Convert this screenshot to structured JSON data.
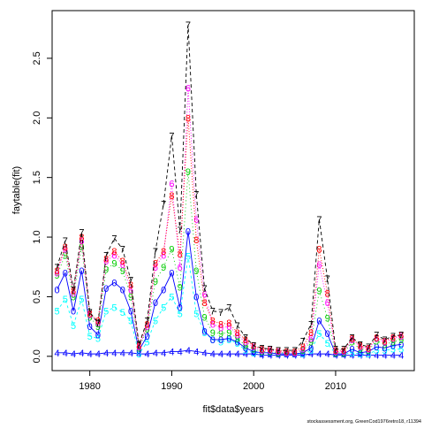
{
  "chart_data": {
    "type": "line",
    "title": "",
    "xlabel": "fit$data$years",
    "ylabel": "faytable(fit)",
    "footnote": "stockassessment.org, GreenCod1976retro18, r11394",
    "xlim": [
      1975.4,
      2019.6
    ],
    "ylim": [
      -0.12,
      2.9
    ],
    "xticks": [
      1980,
      1990,
      2000,
      2010
    ],
    "yticks": [
      0.0,
      0.5,
      1.0,
      1.5,
      2.0,
      2.5
    ],
    "x": [
      1976,
      1977,
      1978,
      1979,
      1980,
      1981,
      1982,
      1983,
      1984,
      1985,
      1986,
      1987,
      1988,
      1989,
      1990,
      1991,
      1992,
      1993,
      1994,
      1995,
      1996,
      1997,
      1998,
      1999,
      2000,
      2001,
      2002,
      2003,
      2004,
      2005,
      2006,
      2007,
      2008,
      2009,
      2010,
      2011,
      2012,
      2013,
      2014,
      2015,
      2016,
      2017,
      2018
    ],
    "series": [
      {
        "name": "4",
        "color": "#0000ff",
        "dash": "",
        "values": [
          0.03,
          0.03,
          0.02,
          0.03,
          0.02,
          0.02,
          0.03,
          0.03,
          0.03,
          0.03,
          0.02,
          0.02,
          0.03,
          0.03,
          0.04,
          0.04,
          0.05,
          0.04,
          0.03,
          0.02,
          0.02,
          0.02,
          0.02,
          0.02,
          0.02,
          0.01,
          0.01,
          0.01,
          0.01,
          0.01,
          0.01,
          0.02,
          0.02,
          0.02,
          0.01,
          0.01,
          0.01,
          0.01,
          0.01,
          0.01,
          0.01,
          0.01,
          0.01
        ]
      },
      {
        "name": "5",
        "color": "#00ffff",
        "dash": "3,3",
        "values": [
          0.38,
          0.48,
          0.26,
          0.48,
          0.17,
          0.15,
          0.38,
          0.41,
          0.37,
          0.3,
          0.02,
          0.12,
          0.3,
          0.41,
          0.5,
          0.36,
          0.84,
          0.36,
          0.2,
          0.14,
          0.12,
          0.14,
          0.11,
          0.05,
          0.03,
          0.03,
          0.03,
          0.02,
          0.02,
          0.02,
          0.02,
          0.05,
          0.19,
          0.11,
          0.02,
          0.02,
          0.03,
          0.02,
          0.02,
          0.05,
          0.05,
          0.06,
          0.06
        ]
      },
      {
        "name": "0",
        "color": "#0000ff",
        "dash": "",
        "values": [
          0.56,
          0.7,
          0.38,
          0.72,
          0.25,
          0.18,
          0.57,
          0.62,
          0.56,
          0.38,
          0.05,
          0.17,
          0.45,
          0.56,
          0.7,
          0.41,
          1.05,
          0.5,
          0.21,
          0.14,
          0.14,
          0.15,
          0.12,
          0.07,
          0.04,
          0.03,
          0.03,
          0.02,
          0.02,
          0.02,
          0.03,
          0.07,
          0.3,
          0.19,
          0.02,
          0.02,
          0.06,
          0.03,
          0.04,
          0.08,
          0.07,
          0.09,
          0.1
        ]
      },
      {
        "name": "9",
        "color": "#00cc00",
        "dash": "1,3",
        "values": [
          0.68,
          0.85,
          0.5,
          0.92,
          0.33,
          0.25,
          0.73,
          0.78,
          0.72,
          0.5,
          0.07,
          0.23,
          0.63,
          0.75,
          0.9,
          0.58,
          1.55,
          0.72,
          0.33,
          0.2,
          0.19,
          0.2,
          0.15,
          0.09,
          0.06,
          0.04,
          0.04,
          0.03,
          0.03,
          0.03,
          0.05,
          0.12,
          0.55,
          0.32,
          0.03,
          0.03,
          0.12,
          0.06,
          0.05,
          0.13,
          0.1,
          0.12,
          0.14
        ]
      },
      {
        "name": "6",
        "color": "#ff00ff",
        "dash": "1,2",
        "values": [
          0.7,
          0.9,
          0.53,
          0.97,
          0.35,
          0.28,
          0.8,
          0.85,
          0.77,
          0.56,
          0.08,
          0.25,
          0.75,
          0.85,
          1.45,
          0.75,
          2.25,
          1.15,
          0.52,
          0.27,
          0.24,
          0.25,
          0.18,
          0.12,
          0.08,
          0.05,
          0.05,
          0.04,
          0.03,
          0.03,
          0.06,
          0.15,
          0.77,
          0.45,
          0.04,
          0.04,
          0.14,
          0.08,
          0.06,
          0.15,
          0.12,
          0.15,
          0.17
        ]
      },
      {
        "name": "8",
        "color": "#ff0000",
        "dash": "1,2",
        "values": [
          0.72,
          0.92,
          0.55,
          1.0,
          0.36,
          0.3,
          0.82,
          0.88,
          0.8,
          0.6,
          0.09,
          0.27,
          0.78,
          0.88,
          1.35,
          0.86,
          2.0,
          0.98,
          0.45,
          0.3,
          0.27,
          0.28,
          0.2,
          0.14,
          0.09,
          0.06,
          0.06,
          0.05,
          0.04,
          0.04,
          0.08,
          0.2,
          0.9,
          0.53,
          0.05,
          0.05,
          0.15,
          0.09,
          0.07,
          0.16,
          0.13,
          0.16,
          0.18
        ]
      },
      {
        "name": "7",
        "color": "#000000",
        "dash": "4,3",
        "values": [
          0.75,
          0.97,
          0.56,
          1.04,
          0.37,
          0.28,
          0.85,
          0.99,
          0.9,
          0.64,
          0.1,
          0.3,
          0.88,
          1.28,
          1.85,
          1.06,
          2.78,
          1.36,
          0.57,
          0.38,
          0.37,
          0.41,
          0.26,
          0.16,
          0.09,
          0.07,
          0.06,
          0.05,
          0.05,
          0.05,
          0.13,
          0.27,
          1.15,
          0.65,
          0.06,
          0.06,
          0.16,
          0.1,
          0.08,
          0.18,
          0.14,
          0.17,
          0.18
        ]
      }
    ]
  }
}
